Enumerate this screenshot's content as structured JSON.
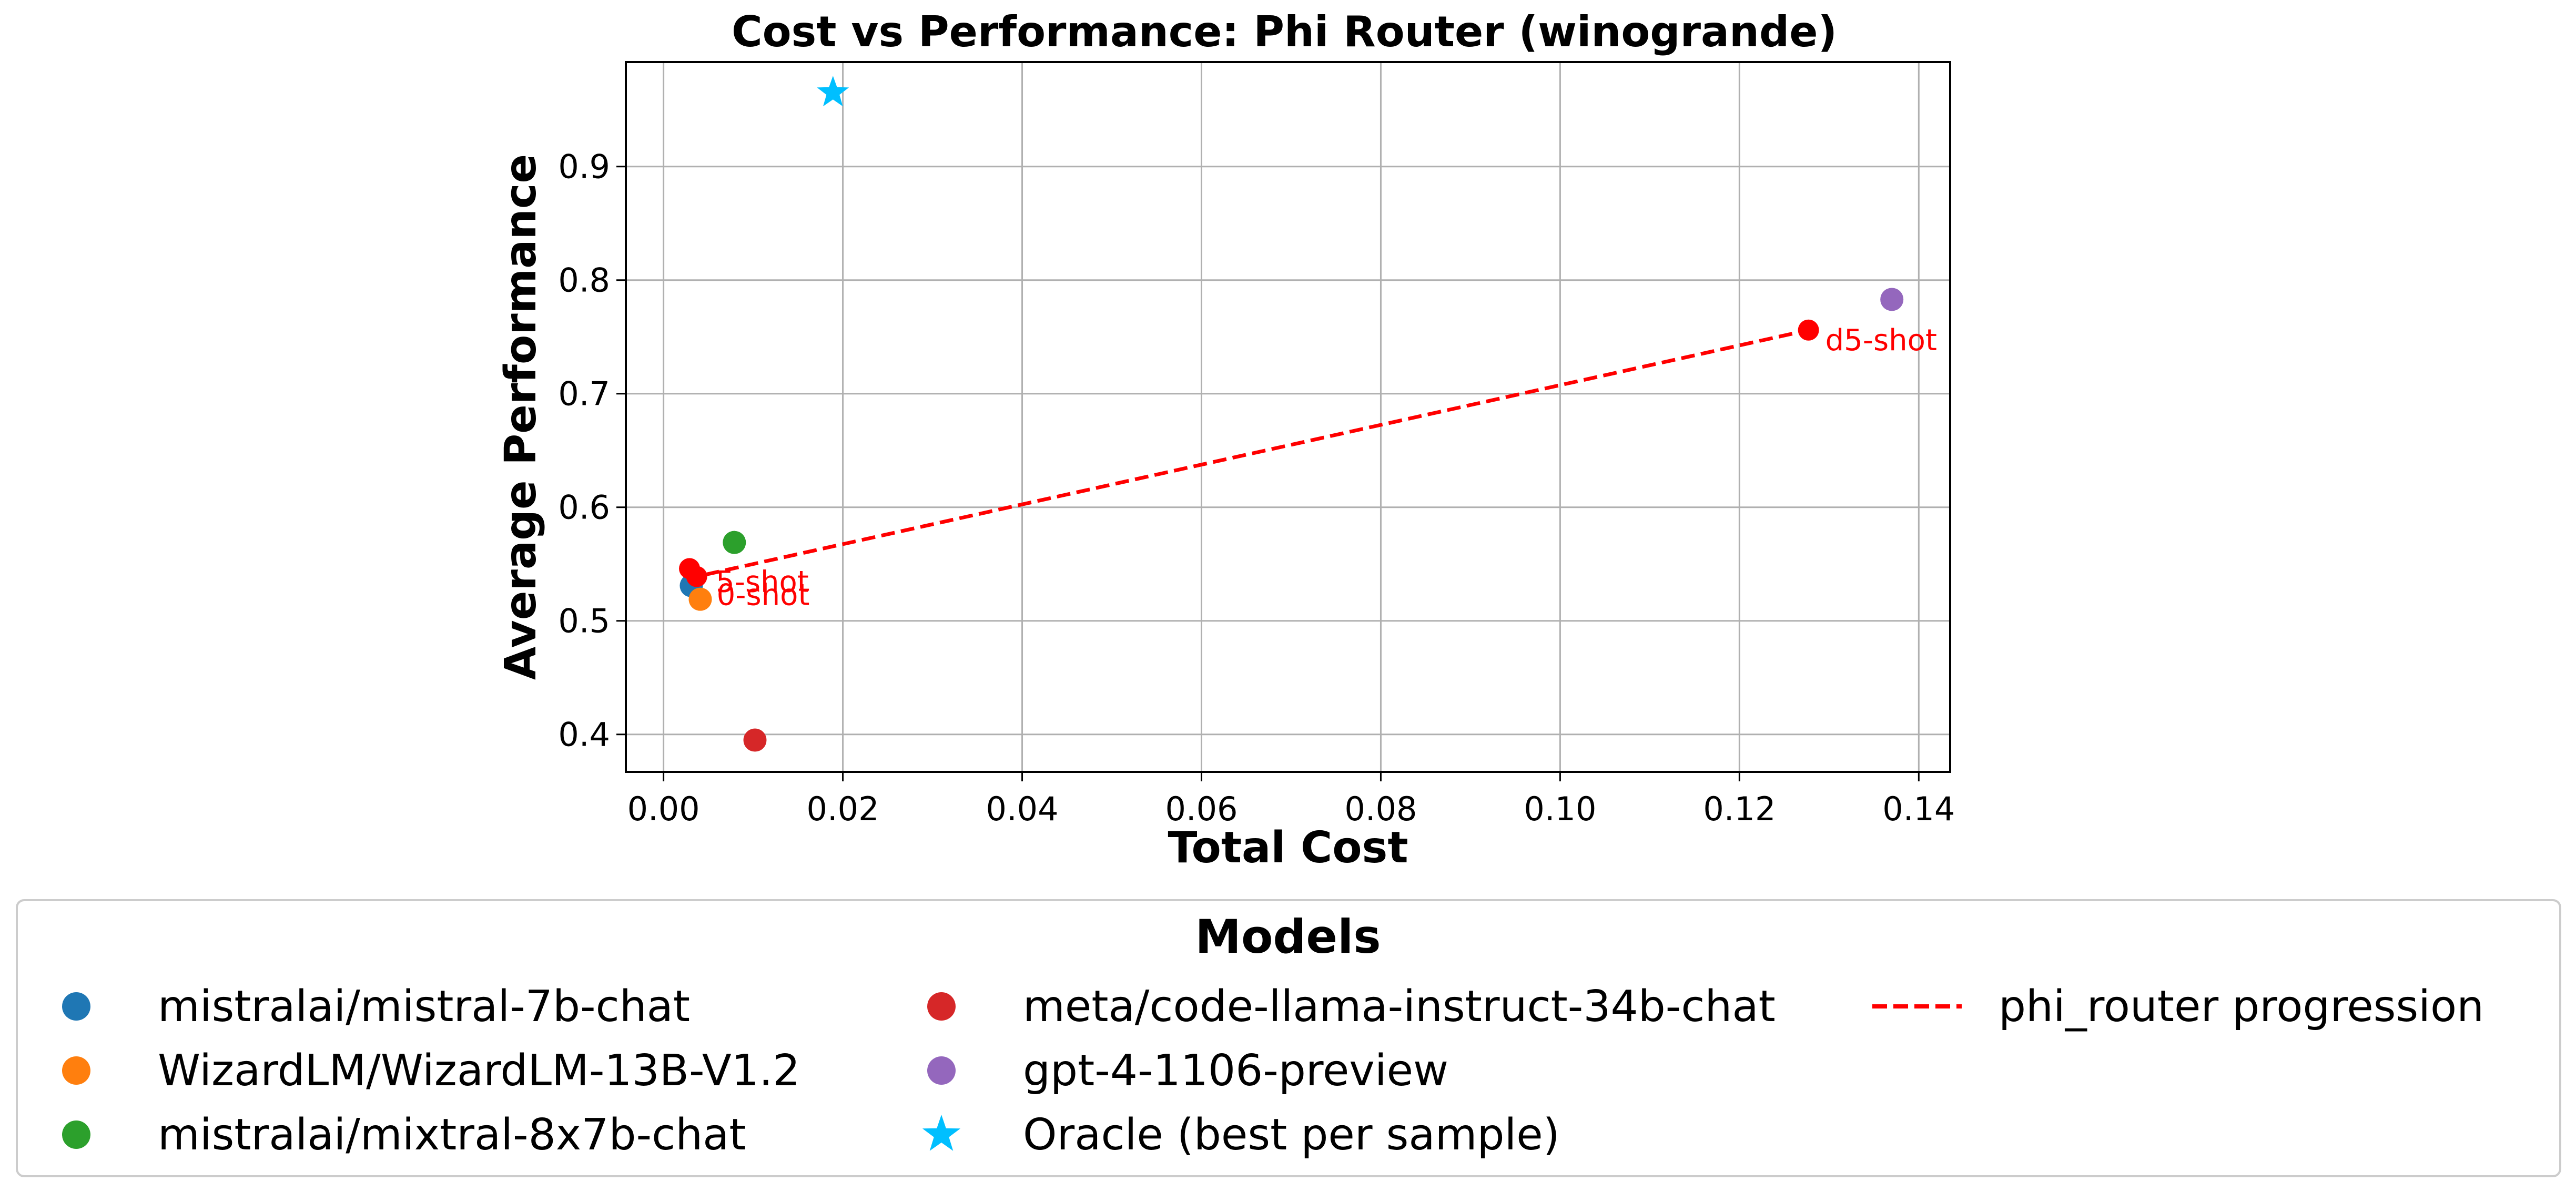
{
  "chart_data": {
    "type": "scatter",
    "title": "Cost vs Performance: Phi Router (winogrande)",
    "xlabel": "Total Cost",
    "ylabel": "Average Performance",
    "xlim": [
      -0.0042,
      0.1435
    ],
    "ylim": [
      0.367,
      0.992
    ],
    "xticks": [
      0.0,
      0.02,
      0.04,
      0.06,
      0.08,
      0.1,
      0.12,
      0.14
    ],
    "xtick_labels": [
      "0.00",
      "0.02",
      "0.04",
      "0.06",
      "0.08",
      "0.10",
      "0.12",
      "0.14"
    ],
    "yticks": [
      0.4,
      0.5,
      0.6,
      0.7,
      0.8,
      0.9
    ],
    "ytick_labels": [
      "0.4",
      "0.5",
      "0.6",
      "0.7",
      "0.8",
      "0.9"
    ],
    "grid": true,
    "models": [
      {
        "name": "mistralai/mistral-7b-chat",
        "x": 0.0031,
        "y": 0.531,
        "color": "#1f77b4"
      },
      {
        "name": "WizardLM/WizardLM-13B-V1.2",
        "x": 0.0041,
        "y": 0.519,
        "color": "#ff7f0e"
      },
      {
        "name": "mistralai/mixtral-8x7b-chat",
        "x": 0.0079,
        "y": 0.569,
        "color": "#2ca02c"
      },
      {
        "name": "meta/code-llama-instruct-34b-chat",
        "x": 0.0102,
        "y": 0.395,
        "color": "#d62728"
      },
      {
        "name": "gpt-4-1106-preview",
        "x": 0.137,
        "y": 0.783,
        "color": "#9467bd"
      }
    ],
    "oracle": {
      "name": "Oracle (best per sample)",
      "x": 0.0189,
      "y": 0.965,
      "color": "#00bfff",
      "marker": "star"
    },
    "router": {
      "name": "phi_router progression",
      "color": "#ff0000",
      "style": "dashed",
      "points": [
        {
          "label": "5-shot",
          "x": 0.0029,
          "y": 0.546
        },
        {
          "label": "0-shot",
          "x": 0.0037,
          "y": 0.539
        },
        {
          "label": "d5-shot",
          "x": 0.1277,
          "y": 0.756
        }
      ]
    },
    "legend": {
      "title": "Models",
      "position": "bottom",
      "columns": 3
    }
  }
}
